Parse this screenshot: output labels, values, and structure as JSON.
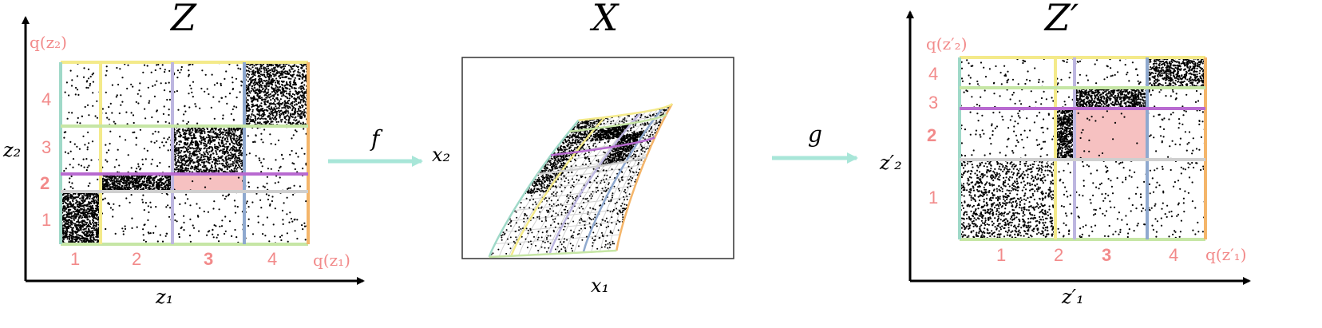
{
  "titles": {
    "left": "Z",
    "middle": "X",
    "right": "Z′"
  },
  "left_panel": {
    "y_axis_label": "z₂",
    "x_axis_label": "z₁",
    "q_y_label": "q(z₂)",
    "q_x_label": "q(z₁)",
    "y_bins": [
      "1",
      "2",
      "3",
      "4"
    ],
    "x_bins": [
      "1",
      "2",
      "3",
      "4"
    ],
    "highlight_bin_x": "3",
    "highlight_bin_y": "2"
  },
  "middle_panel": {
    "x_axis_label": "x₁",
    "y_axis_label": "x₂"
  },
  "right_panel": {
    "y_axis_label": "z′₂",
    "x_axis_label": "z′₁",
    "q_y_label": "q(z′₂)",
    "q_x_label": "q(z′₁)",
    "y_bins": [
      "1",
      "2",
      "3",
      "4"
    ],
    "x_bins": [
      "1",
      "2",
      "3",
      "4"
    ]
  },
  "maps": {
    "forward": "f",
    "inverse": "g"
  },
  "colors": {
    "label_pink": "#f28a8a",
    "arrow_teal": "#a8e6d8",
    "highlight": "#f6c1c1",
    "teal": "#9fd9c8",
    "yellow": "#f4ea8a",
    "lavender": "#bdb6e0",
    "blue": "#8fa9cf",
    "orange": "#f4b56a",
    "green": "#c6e6a5",
    "purple": "#b86ad0",
    "gray": "#cfcfcf"
  }
}
